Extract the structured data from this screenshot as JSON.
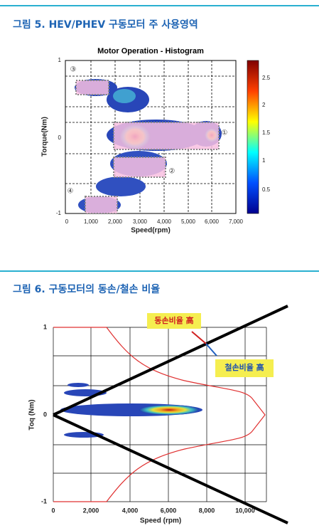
{
  "figures": [
    {
      "caption": "그림 5. HEV/PHEV 구동모터 주 사용영역",
      "title": "Motor Operation - Histogram",
      "x_label": "Speed(rpm)",
      "y_label": "Torque(Nm)",
      "x_ticks": [
        "0",
        "1,000",
        "2,000",
        "3,000",
        "4,000",
        "5,000",
        "6,000",
        "7,000"
      ],
      "y_ticks": [
        "1",
        "0",
        "-1"
      ],
      "colorbar_ticks": [
        "2.5",
        "2",
        "1.5",
        "1",
        "0.5"
      ],
      "markers": [
        "①",
        "②",
        "③",
        "④"
      ]
    },
    {
      "caption": "그림 6. 구동모터의 동손/철손 비율",
      "x_label": "Speed (rpm)",
      "y_label": "Toq (Nm)",
      "x_ticks": [
        "0",
        "2,000",
        "4,000",
        "6,000",
        "8,000",
        "10,000"
      ],
      "y_ticks": [
        "1",
        "0",
        "-1"
      ],
      "annotations": [
        "동손비율 高",
        "철손비율 高"
      ]
    }
  ]
}
